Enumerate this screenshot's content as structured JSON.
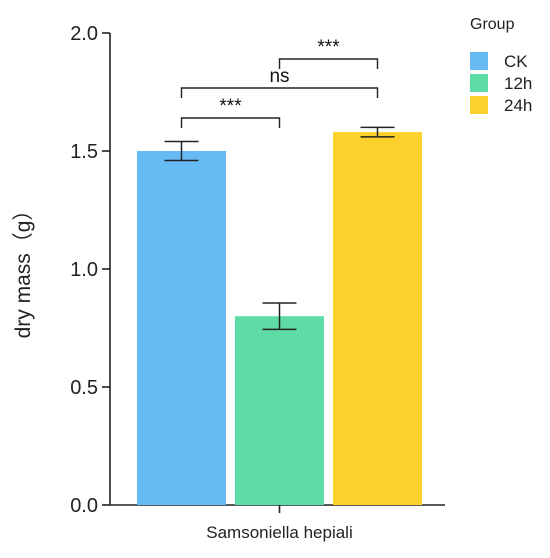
{
  "chart_data": {
    "type": "bar",
    "title": "",
    "xlabel": "",
    "ylabel": "dry mass（g）",
    "category": "Samsoniella hepiali",
    "ylim": [
      0,
      2.0
    ],
    "y_ticks": [
      "0.0",
      "0.5",
      "1.0",
      "1.5",
      "2.0"
    ],
    "grid": false,
    "legend": {
      "title": "Group",
      "placement": "top-right"
    },
    "series": [
      {
        "name": "CK",
        "value": 1.5,
        "error": 0.04,
        "color": "#66bbf2"
      },
      {
        "name": "12h",
        "value": 0.8,
        "error": 0.056,
        "color": "#5fdba6"
      },
      {
        "name": "24h",
        "value": 1.58,
        "error": 0.02,
        "color": "#fdd12c"
      }
    ],
    "significance": [
      {
        "from": "CK",
        "to": "12h",
        "label": "***"
      },
      {
        "from": "CK",
        "to": "24h",
        "label": "ns"
      },
      {
        "from": "12h",
        "to": "24h",
        "label": "***"
      }
    ]
  }
}
